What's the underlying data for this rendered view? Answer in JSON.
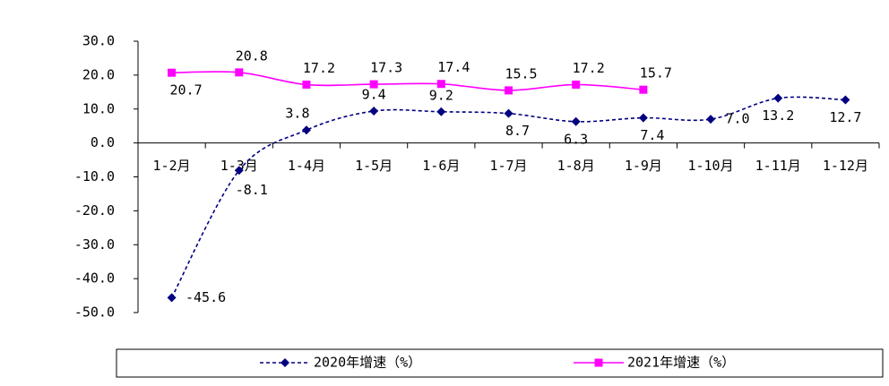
{
  "chart_data": {
    "type": "line",
    "categories": [
      "1-2月",
      "1-3月",
      "1-4月",
      "1-5月",
      "1-6月",
      "1-7月",
      "1-8月",
      "1-9月",
      "1-10月",
      "1-11月",
      "1-12月"
    ],
    "series": [
      {
        "name": "2020年增速（%）",
        "color": "#000080",
        "dash": true,
        "marker": "diamond",
        "values": [
          -45.6,
          -8.1,
          3.8,
          9.4,
          9.2,
          8.7,
          6.3,
          7.4,
          7.0,
          13.2,
          12.7
        ],
        "value_labels": [
          "-45.6",
          "-8.1",
          "3.8",
          "9.4",
          "9.2",
          "8.7",
          "6.3",
          "7.4",
          "7.0",
          "13.2",
          "12.7"
        ]
      },
      {
        "name": "2021年增速（%）",
        "color": "#ff00ff",
        "dash": false,
        "marker": "square",
        "values": [
          20.7,
          20.8,
          17.2,
          17.3,
          17.4,
          15.5,
          17.2,
          15.7,
          null,
          null,
          null
        ],
        "value_labels": [
          "20.7",
          "20.8",
          "17.2",
          "17.3",
          "17.4",
          "15.5",
          "17.2",
          "15.7",
          null,
          null,
          null
        ]
      }
    ],
    "ylim": [
      -50,
      30
    ],
    "yticks": [
      {
        "value": -50,
        "label": "-50.0"
      },
      {
        "value": -40,
        "label": "-40.0"
      },
      {
        "value": -30,
        "label": "-30.0"
      },
      {
        "value": -20,
        "label": "-20.0"
      },
      {
        "value": -10,
        "label": "-10.0"
      },
      {
        "value": 0,
        "label": "0.0"
      },
      {
        "value": 10,
        "label": "10.0"
      },
      {
        "value": 20,
        "label": "20.0"
      },
      {
        "value": 30,
        "label": "30.0"
      }
    ],
    "legend": "bottom"
  }
}
